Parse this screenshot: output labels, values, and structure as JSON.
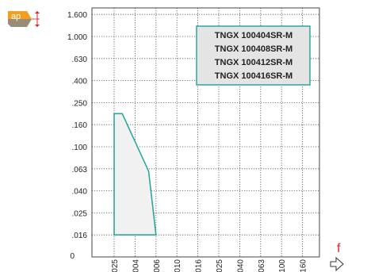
{
  "chart_data": {
    "type": "area",
    "x_tick_labels": [
      ".0025",
      ".004",
      ".006",
      ".010",
      ".016",
      ".025",
      ".040",
      ".063",
      ".100",
      ".160"
    ],
    "y_tick_labels": [
      "0",
      ".016",
      ".025",
      ".040",
      ".063",
      ".100",
      ".160",
      ".250",
      ".400",
      ".630",
      "1.000",
      "1.600"
    ],
    "x_scale": "categorical (logarithmic steps)",
    "y_scale": "categorical (logarithmic steps)",
    "grid": true,
    "grid_style": "dotted",
    "region": {
      "name": "",
      "fill_color": "#f1f1f1",
      "edge_color": "#2aa8a0",
      "points": [
        {
          "x": 0.0025,
          "y": 0.016
        },
        {
          "x": 0.0025,
          "y": 0.2
        },
        {
          "x": 0.003,
          "y": 0.2
        },
        {
          "x": 0.0052,
          "y": 0.06
        },
        {
          "x": 0.006,
          "y": 0.016
        }
      ]
    },
    "legend": {
      "placement": "top-right",
      "entries": [
        "TNGX 100404SR-M",
        "TNGX 100408SR-M",
        "TNGX 100412SR-M",
        "TNGX 100416SR-M"
      ],
      "border_color": "#2aa8a0",
      "fill_color": "#e4e4e4"
    },
    "y_axis_symbol": "ap",
    "x_axis_symbol": "f",
    "colors": {
      "accent": "#2aa8a0",
      "symbol_red": "#e0202a",
      "insert_orange": "#f0a020"
    }
  }
}
